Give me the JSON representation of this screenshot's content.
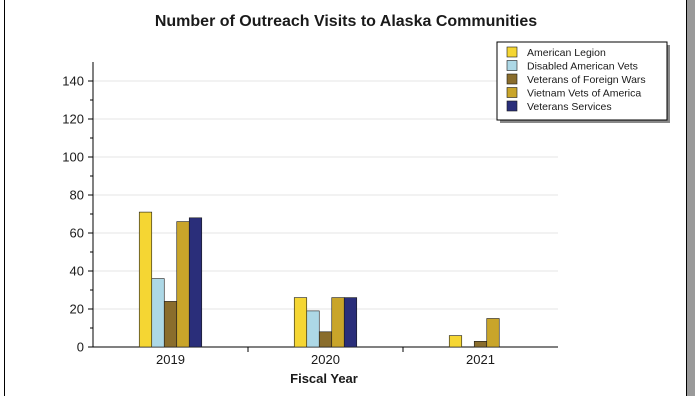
{
  "chart_data": {
    "type": "bar",
    "title": "Number of Outreach Visits to Alaska Communities",
    "xlabel": "Fiscal Year",
    "ylabel": "",
    "categories": [
      "2019",
      "2020",
      "2021"
    ],
    "ylim": [
      0,
      150
    ],
    "yticks": [
      0,
      20,
      40,
      60,
      80,
      100,
      120,
      140
    ],
    "grid": true,
    "legend_position": "top-right",
    "series": [
      {
        "name": "American Legion",
        "color": "#f5d633",
        "values": [
          71,
          26,
          6
        ]
      },
      {
        "name": "Disabled American Vets",
        "color": "#add8e6",
        "values": [
          36,
          19,
          null
        ]
      },
      {
        "name": "Veterans of Foreign Wars",
        "color": "#8a6d2c",
        "values": [
          24,
          8,
          3
        ]
      },
      {
        "name": "Vietnam Vets of America",
        "color": "#c9a52a",
        "values": [
          66,
          26,
          15
        ]
      },
      {
        "name": "Veterans Services",
        "color": "#2a2e7a",
        "values": [
          68,
          26,
          null
        ]
      }
    ]
  }
}
